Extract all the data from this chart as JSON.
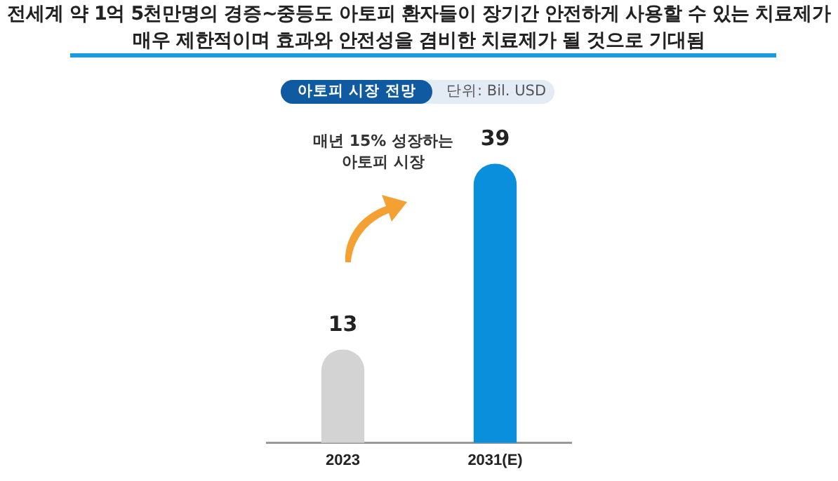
{
  "chart_data": {
    "type": "bar",
    "title": "전세계 약 1억 5천만명의 경증~중등도 아토피 환자들이 장기간 안전하게 사용할 수 있는 치료제가\n매우 제한적이며 효과와 안전성을 겸비한 치료제가 될 것으로 기대됨",
    "subtitle": "아토피 시장 전망",
    "annotations": [
      "단위: Bil. USD",
      "매년 15% 성장하는\n아토피 시장"
    ],
    "categories": [
      "2023",
      "2031(E)"
    ],
    "values": [
      13,
      39
    ],
    "colors": [
      "#d3d3d3",
      "#0a8fdc"
    ],
    "tick_labels": "x",
    "grid": false,
    "legend": false,
    "data_labels": true
  }
}
